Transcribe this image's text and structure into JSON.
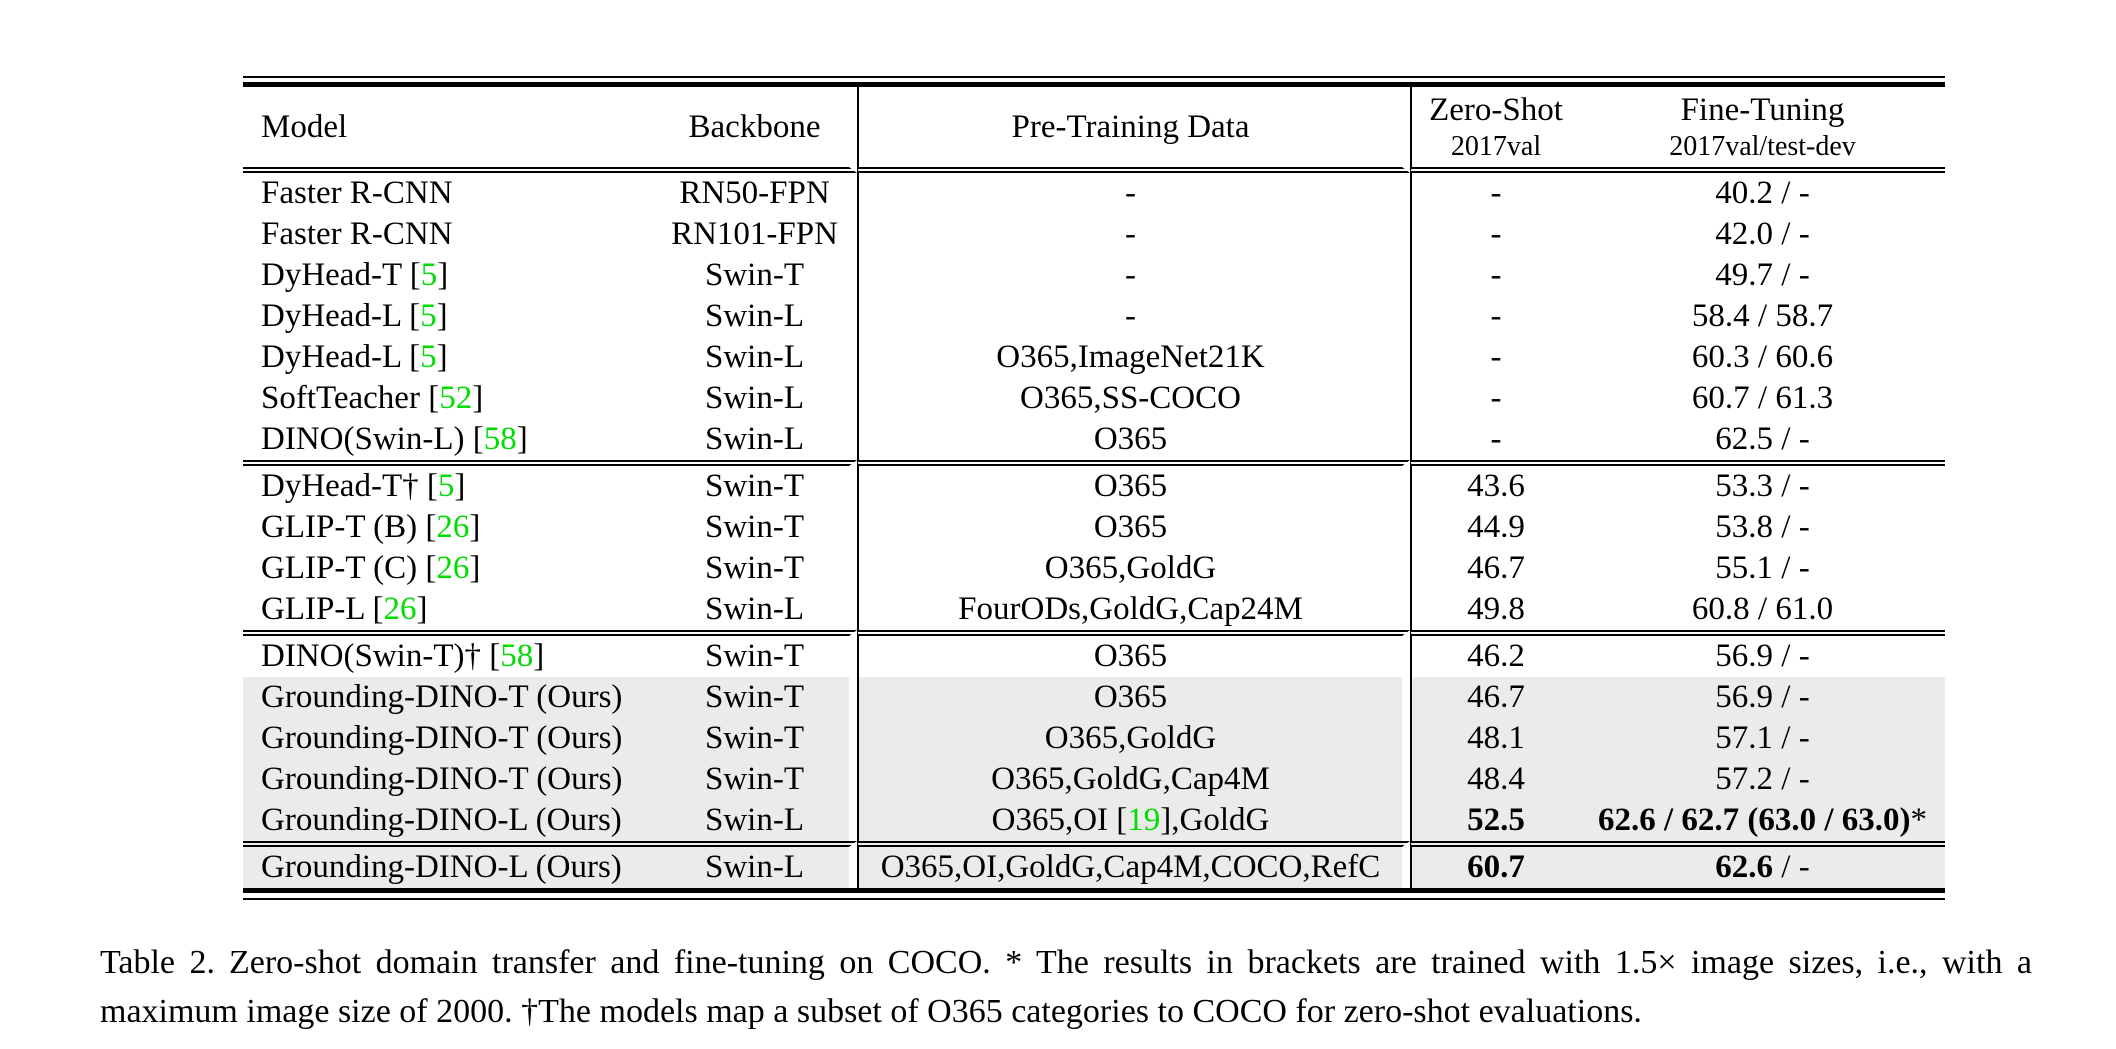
{
  "colors": {
    "citation_green": "#00dd00",
    "row_highlight_gray": "#ebebeb",
    "rule_black": "#000000",
    "page_background": "#ffffff"
  },
  "table": {
    "header": {
      "model": "Model",
      "backbone": "Backbone",
      "pretrain": "Pre-Training Data",
      "zero_shot": {
        "title": "Zero-Shot",
        "sub": "2017val"
      },
      "fine_tuning": {
        "title": "Fine-Tuning",
        "sub": "2017val/test-dev"
      }
    },
    "blocks": [
      {
        "rows": [
          {
            "model": [
              "Faster R-CNN"
            ],
            "backbone": "RN50-FPN",
            "pretrain": "-",
            "zero_shot": "-",
            "fine_tuning": "40.2 / -",
            "highlight": false
          },
          {
            "model": [
              "Faster R-CNN"
            ],
            "backbone": "RN101-FPN",
            "pretrain": "-",
            "zero_shot": "-",
            "fine_tuning": "42.0 / -",
            "highlight": false
          },
          {
            "model": [
              "DyHead-T ",
              {
                "ref": "5"
              }
            ],
            "backbone": "Swin-T",
            "pretrain": "-",
            "zero_shot": "-",
            "fine_tuning": "49.7 / -",
            "highlight": false
          },
          {
            "model": [
              "DyHead-L ",
              {
                "ref": "5"
              }
            ],
            "backbone": "Swin-L",
            "pretrain": "-",
            "zero_shot": "-",
            "fine_tuning": "58.4 / 58.7",
            "highlight": false
          },
          {
            "model": [
              "DyHead-L ",
              {
                "ref": "5"
              }
            ],
            "backbone": "Swin-L",
            "pretrain": "O365,ImageNet21K",
            "zero_shot": "-",
            "fine_tuning": "60.3 / 60.6",
            "highlight": false
          },
          {
            "model": [
              "SoftTeacher ",
              {
                "ref": "52"
              }
            ],
            "backbone": "Swin-L",
            "pretrain": "O365,SS-COCO",
            "zero_shot": "-",
            "fine_tuning": "60.7 / 61.3",
            "highlight": false
          },
          {
            "model": [
              "DINO(Swin-L) ",
              {
                "ref": "58"
              }
            ],
            "backbone": "Swin-L",
            "pretrain": "O365",
            "zero_shot": "-",
            "fine_tuning": "62.5 / -",
            "highlight": false
          }
        ]
      },
      {
        "rows": [
          {
            "model": [
              "DyHead-T† ",
              {
                "ref": "5"
              }
            ],
            "backbone": "Swin-T",
            "pretrain": "O365",
            "zero_shot": "43.6",
            "fine_tuning": "53.3 / -",
            "highlight": false
          },
          {
            "model": [
              "GLIP-T (B) ",
              {
                "ref": "26"
              }
            ],
            "backbone": "Swin-T",
            "pretrain": "O365",
            "zero_shot": "44.9",
            "fine_tuning": "53.8 / -",
            "highlight": false
          },
          {
            "model": [
              "GLIP-T (C) ",
              {
                "ref": "26"
              }
            ],
            "backbone": "Swin-T",
            "pretrain": "O365,GoldG",
            "zero_shot": "46.7",
            "fine_tuning": "55.1 / -",
            "highlight": false
          },
          {
            "model": [
              "GLIP-L ",
              {
                "ref": "26"
              }
            ],
            "backbone": "Swin-L",
            "pretrain": "FourODs,GoldG,Cap24M",
            "zero_shot": "49.8",
            "fine_tuning": "60.8 / 61.0",
            "highlight": false
          }
        ]
      },
      {
        "rows": [
          {
            "model": [
              "DINO(Swin-T)† ",
              {
                "ref": "58"
              }
            ],
            "backbone": "Swin-T",
            "pretrain": "O365",
            "zero_shot": "46.2",
            "fine_tuning": "56.9 / -",
            "highlight": false
          },
          {
            "model": [
              "Grounding-DINO-T (Ours)"
            ],
            "backbone": "Swin-T",
            "pretrain": "O365",
            "zero_shot": "46.7",
            "fine_tuning": "56.9 / -",
            "highlight": true
          },
          {
            "model": [
              "Grounding-DINO-T (Ours)"
            ],
            "backbone": "Swin-T",
            "pretrain": "O365,GoldG",
            "zero_shot": "48.1",
            "fine_tuning": "57.1 / -",
            "highlight": true
          },
          {
            "model": [
              "Grounding-DINO-T (Ours)"
            ],
            "backbone": "Swin-T",
            "pretrain": "O365,GoldG,Cap4M",
            "zero_shot": "48.4",
            "fine_tuning": "57.2 / -",
            "highlight": true
          },
          {
            "model": [
              "Grounding-DINO-L (Ours)"
            ],
            "backbone": "Swin-L",
            "pretrain": [
              "O365,OI ",
              {
                "ref": "19"
              },
              ",GoldG"
            ],
            "zero_shot": [
              {
                "b": "52.5"
              }
            ],
            "fine_tuning": [
              {
                "b": "62.6 / 62.7 (63.0 / 63.0)"
              },
              "*"
            ],
            "highlight": true
          }
        ]
      },
      {
        "rows": [
          {
            "model": [
              "Grounding-DINO-L (Ours)"
            ],
            "backbone": "Swin-L",
            "pretrain": "O365,OI,GoldG,Cap4M,COCO,RefC",
            "zero_shot": [
              {
                "b": "60.7"
              }
            ],
            "fine_tuning": [
              {
                "b": "62.6"
              },
              " / -"
            ],
            "highlight": true
          }
        ]
      }
    ]
  },
  "caption": {
    "label": "Table 2.",
    "text": "Zero-shot domain transfer and fine-tuning on COCO. * The results in brackets are trained with 1.5× image sizes, i.e., with a maximum image size of 2000. †The models map a subset of O365 categories to COCO for zero-shot evaluations."
  }
}
